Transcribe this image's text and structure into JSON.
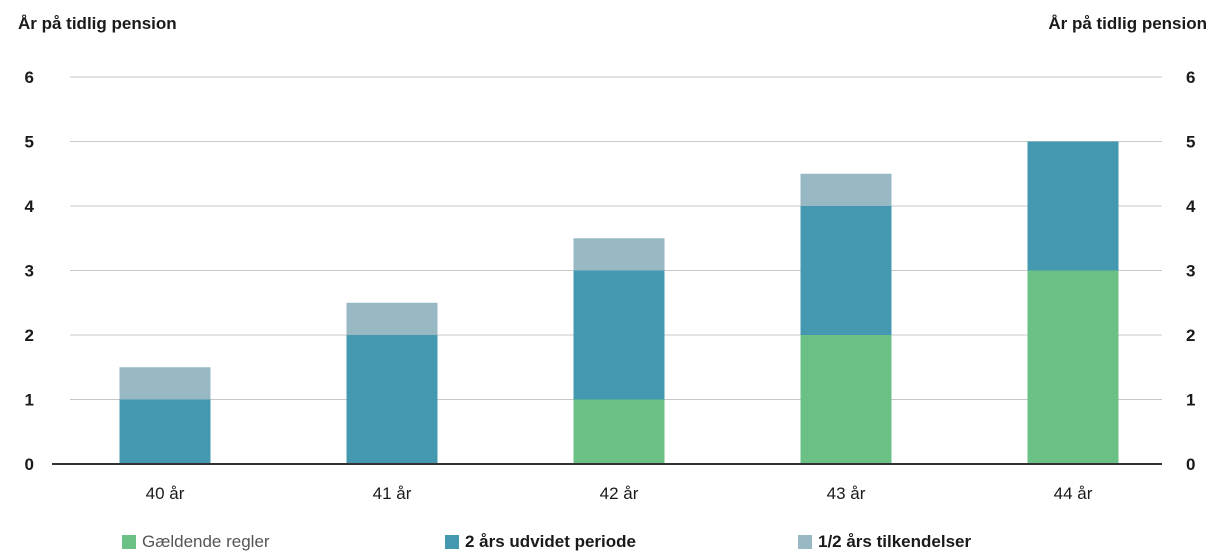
{
  "chart_data": {
    "type": "bar",
    "stacked": true,
    "title": "",
    "ylabel": "År på tidlig pension",
    "ylabel_right": "År på tidlig pension",
    "xlabel": "",
    "categories": [
      "40 år",
      "41 år",
      "42 år",
      "43 år",
      "44 år"
    ],
    "ylim": [
      0,
      6
    ],
    "yticks": [
      0,
      1,
      2,
      3,
      4,
      5,
      6
    ],
    "grid": true,
    "legend_position": "bottom",
    "series": [
      {
        "name": "Gældende regler",
        "values": [
          0,
          0,
          1,
          2,
          3
        ],
        "color": "#6bc085"
      },
      {
        "name": "2 års udvidet periode",
        "values": [
          1,
          2,
          2,
          2,
          2
        ],
        "color": "#4499b0"
      },
      {
        "name": "1/2 års tilkendelser",
        "values": [
          0.5,
          0.5,
          0.5,
          0.5,
          0
        ],
        "color": "#98b8c4"
      }
    ],
    "legend_weights": [
      "normal",
      "bold",
      "bold"
    ]
  }
}
